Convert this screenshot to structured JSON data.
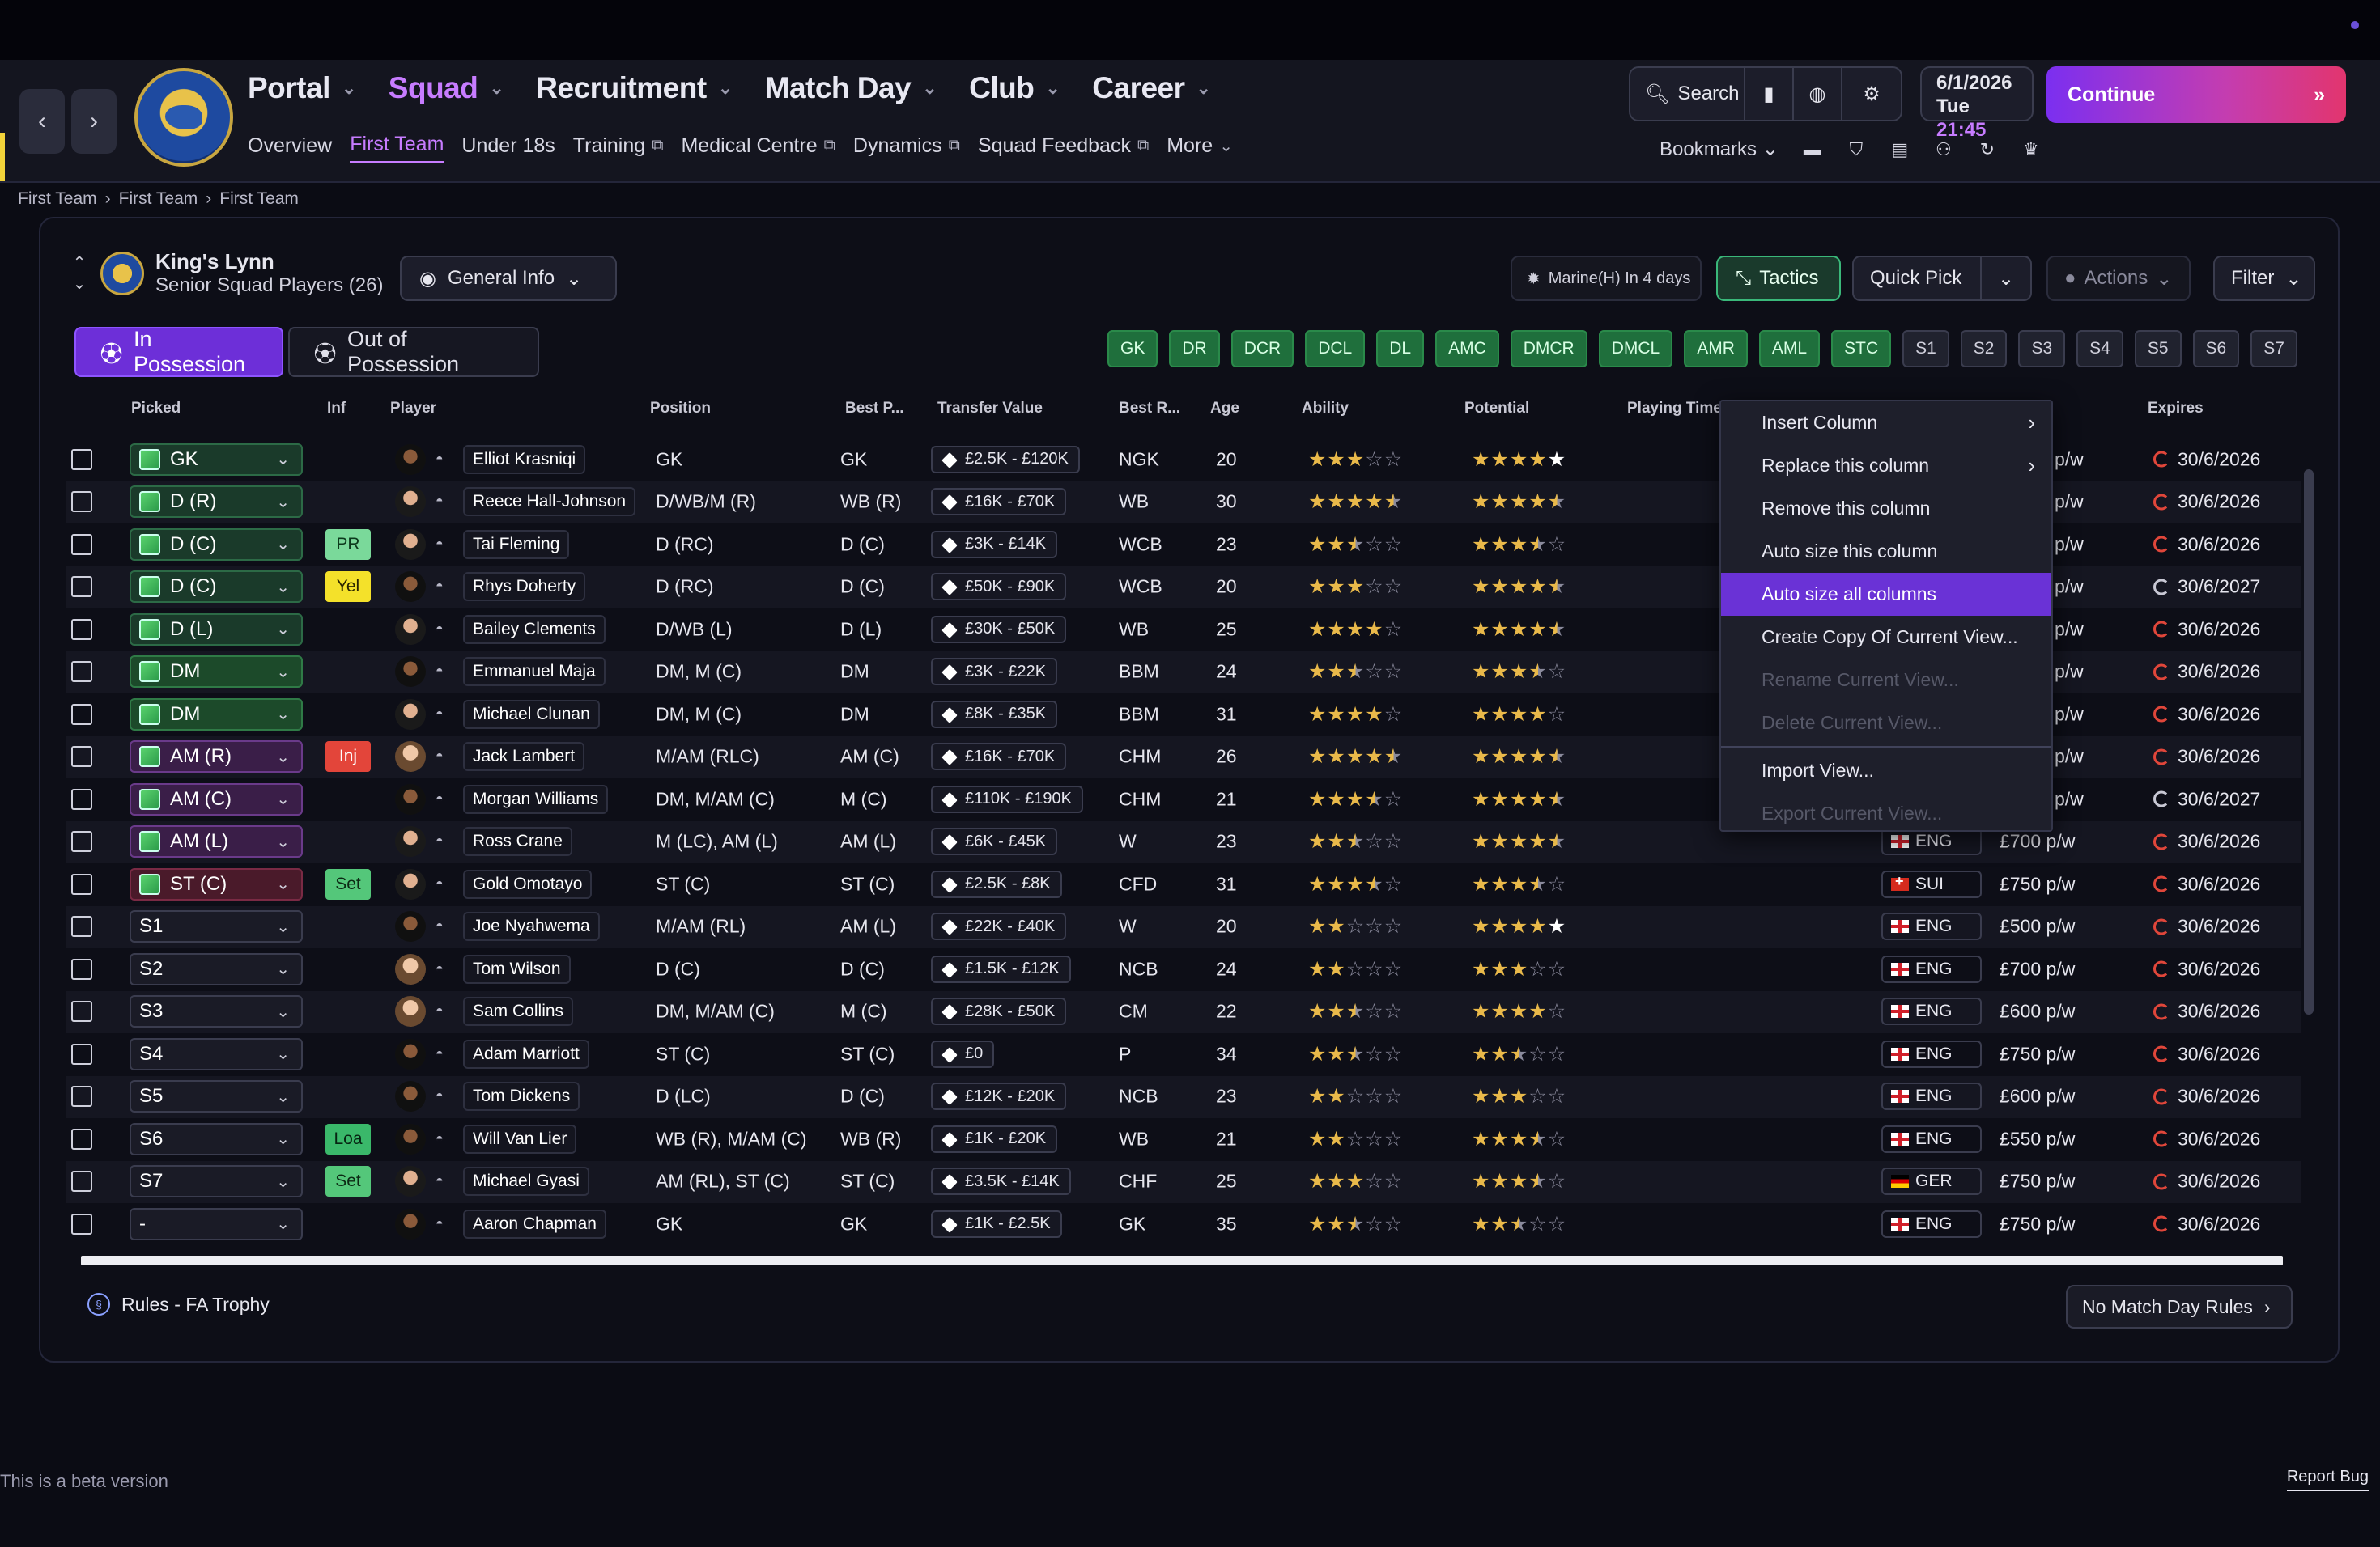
{
  "nav": {
    "main": [
      {
        "label": "Portal",
        "active": false
      },
      {
        "label": "Squad",
        "active": true
      },
      {
        "label": "Recruitment",
        "active": false
      },
      {
        "label": "Match Day",
        "active": false
      },
      {
        "label": "Club",
        "active": false
      },
      {
        "label": "Career",
        "active": false
      }
    ],
    "sub": [
      {
        "label": "Overview",
        "ext": false,
        "active": false
      },
      {
        "label": "First Team",
        "ext": false,
        "active": true
      },
      {
        "label": "Under 18s",
        "ext": false,
        "active": false
      },
      {
        "label": "Training",
        "ext": true,
        "active": false
      },
      {
        "label": "Medical Centre",
        "ext": true,
        "active": false
      },
      {
        "label": "Dynamics",
        "ext": true,
        "active": false
      },
      {
        "label": "Squad Feedback",
        "ext": true,
        "active": false
      },
      {
        "label": "More",
        "ext": false,
        "active": false
      }
    ]
  },
  "header": {
    "search_label": "Search",
    "date": "6/1/2026",
    "day": "Tue",
    "time": "21:45",
    "continue_label": "Continue",
    "bookmarks_label": "Bookmarks"
  },
  "breadcrumb": [
    "First Team",
    "First Team",
    "First Team"
  ],
  "club": {
    "name": "King's Lynn",
    "subtitle": "Senior Squad Players (26)"
  },
  "toolbar": {
    "view_label": "General Info",
    "opponent": "Marine(H) In 4 days",
    "tactics_label": "Tactics",
    "quickpick_label": "Quick Pick",
    "actions_label": "Actions",
    "filter_label": "Filter"
  },
  "possession": {
    "in_label": "In Possession",
    "out_label": "Out of Possession"
  },
  "position_chips": [
    {
      "label": "GK",
      "filled": true
    },
    {
      "label": "DR",
      "filled": true
    },
    {
      "label": "DCR",
      "filled": true
    },
    {
      "label": "DCL",
      "filled": true
    },
    {
      "label": "DL",
      "filled": true
    },
    {
      "label": "AMC",
      "filled": true
    },
    {
      "label": "DMCR",
      "filled": true
    },
    {
      "label": "DMCL",
      "filled": true
    },
    {
      "label": "AMR",
      "filled": true
    },
    {
      "label": "AML",
      "filled": true
    },
    {
      "label": "STC",
      "filled": true
    },
    {
      "label": "S1",
      "filled": false
    },
    {
      "label": "S2",
      "filled": false
    },
    {
      "label": "S3",
      "filled": false
    },
    {
      "label": "S4",
      "filled": false
    },
    {
      "label": "S5",
      "filled": false
    },
    {
      "label": "S6",
      "filled": false
    },
    {
      "label": "S7",
      "filled": false
    }
  ],
  "columns": {
    "picked": "Picked",
    "inf": "Inf",
    "player": "Player",
    "position": "Position",
    "best_pos": "Best P...",
    "transfer_value": "Transfer Value",
    "best_role": "Best R...",
    "age": "Age",
    "ability": "Ability",
    "potential": "Potential",
    "playing_time": "Playing Time",
    "expires": "Expires"
  },
  "players": [
    {
      "picked": "GK",
      "pick_type": "gk",
      "inf": "",
      "name": "Elliot Krasniqi",
      "face": "d",
      "position": "GK",
      "best_pos": "GK",
      "value": "£2.5K - £120K",
      "role": "NGK",
      "age": "20",
      "ability": 3,
      "potential": 5,
      "potential_white": true,
      "nation": "",
      "wage": "",
      "expires": "30/6/2026",
      "exp_red": true
    },
    {
      "picked": "D (R)",
      "pick_type": "df",
      "inf": "",
      "name": "Reece Hall-Johnson",
      "face": "",
      "position": "D/WB/M (R)",
      "best_pos": "WB (R)",
      "value": "£16K - £70K",
      "role": "WB",
      "age": "30",
      "ability": 4.5,
      "potential": 4.5,
      "nation": "",
      "wage": "",
      "expires": "30/6/2026",
      "exp_red": true
    },
    {
      "picked": "D (C)",
      "pick_type": "df",
      "inf": "PR",
      "name": "Tai Fleming",
      "face": "",
      "position": "D (RC)",
      "best_pos": "D (C)",
      "value": "£3K - £14K",
      "role": "WCB",
      "age": "23",
      "ability": 2.5,
      "potential": 3.5,
      "nation": "",
      "wage": "",
      "expires": "30/6/2026",
      "exp_red": true
    },
    {
      "picked": "D (C)",
      "pick_type": "df",
      "inf": "Yel",
      "name": "Rhys Doherty",
      "face": "d",
      "position": "D (RC)",
      "best_pos": "D (C)",
      "value": "£50K - £90K",
      "role": "WCB",
      "age": "20",
      "ability": 3,
      "potential": 4.5,
      "nation": "",
      "wage": "",
      "expires": "30/6/2027",
      "exp_red": false
    },
    {
      "picked": "D (L)",
      "pick_type": "df",
      "inf": "",
      "name": "Bailey Clements",
      "face": "",
      "position": "D/WB (L)",
      "best_pos": "D (L)",
      "value": "£30K - £50K",
      "role": "WB",
      "age": "25",
      "ability": 4,
      "potential": 4.5,
      "nation": "",
      "wage": "",
      "expires": "30/6/2026",
      "exp_red": true
    },
    {
      "picked": "DM",
      "pick_type": "dm",
      "inf": "",
      "name": "Emmanuel Maja",
      "face": "d",
      "position": "DM, M (C)",
      "best_pos": "DM",
      "value": "£3K - £22K",
      "role": "BBM",
      "age": "24",
      "ability": 2.5,
      "potential": 3.5,
      "nation": "",
      "wage": "",
      "expires": "30/6/2026",
      "exp_red": true
    },
    {
      "picked": "DM",
      "pick_type": "dm",
      "inf": "",
      "name": "Michael Clunan",
      "face": "",
      "position": "DM, M (C)",
      "best_pos": "DM",
      "value": "£8K - £35K",
      "role": "BBM",
      "age": "31",
      "ability": 4,
      "potential": 4,
      "nation": "",
      "wage": "",
      "expires": "30/6/2026",
      "exp_red": true
    },
    {
      "picked": "AM (R)",
      "pick_type": "am",
      "inf": "Inj",
      "name": "Jack Lambert",
      "face": "l",
      "position": "M/AM (RLC)",
      "best_pos": "AM (C)",
      "value": "£16K - £70K",
      "role": "CHM",
      "age": "26",
      "ability": 4.5,
      "potential": 4.5,
      "nation": "",
      "wage": "",
      "expires": "30/6/2026",
      "exp_red": true
    },
    {
      "picked": "AM (C)",
      "pick_type": "am",
      "inf": "",
      "name": "Morgan Williams",
      "face": "d",
      "position": "DM, M/AM (C)",
      "best_pos": "M (C)",
      "value": "£110K - £190K",
      "role": "CHM",
      "age": "21",
      "ability": 3.5,
      "potential": 4.5,
      "nation": "",
      "wage": "",
      "expires": "30/6/2027",
      "exp_red": false
    },
    {
      "picked": "AM (L)",
      "pick_type": "am",
      "inf": "",
      "name": "Ross Crane",
      "face": "",
      "position": "M (LC), AM (L)",
      "best_pos": "AM (L)",
      "value": "£6K - £45K",
      "role": "W",
      "age": "23",
      "ability": 2.5,
      "potential": 4.5,
      "nation": "ENG",
      "wage": "£700 p/w",
      "expires": "30/6/2026",
      "exp_red": true
    },
    {
      "picked": "ST (C)",
      "pick_type": "st",
      "inf": "Set",
      "name": "Gold Omotayo",
      "face": "",
      "position": "ST (C)",
      "best_pos": "ST (C)",
      "value": "£2.5K - £8K",
      "role": "CFD",
      "age": "31",
      "ability": 3.5,
      "potential": 3.5,
      "nation": "SUI",
      "wage": "£750 p/w",
      "expires": "30/6/2026",
      "exp_red": true
    },
    {
      "picked": "S1",
      "pick_type": "",
      "inf": "",
      "name": "Joe Nyahwema",
      "face": "d",
      "position": "M/AM (RL)",
      "best_pos": "AM (L)",
      "value": "£22K - £40K",
      "role": "W",
      "age": "20",
      "ability": 2,
      "potential": 5,
      "potential_white": true,
      "nation": "ENG",
      "wage": "£500 p/w",
      "expires": "30/6/2026",
      "exp_red": true
    },
    {
      "picked": "S2",
      "pick_type": "",
      "inf": "",
      "name": "Tom Wilson",
      "face": "l",
      "position": "D (C)",
      "best_pos": "D (C)",
      "value": "£1.5K - £12K",
      "role": "NCB",
      "age": "24",
      "ability": 2,
      "potential": 3,
      "nation": "ENG",
      "wage": "£700 p/w",
      "expires": "30/6/2026",
      "exp_red": true
    },
    {
      "picked": "S3",
      "pick_type": "",
      "inf": "",
      "name": "Sam Collins",
      "face": "l",
      "position": "DM, M/AM (C)",
      "best_pos": "M (C)",
      "value": "£28K - £50K",
      "role": "CM",
      "age": "22",
      "ability": 2.5,
      "potential": 4,
      "nation": "ENG",
      "wage": "£600 p/w",
      "expires": "30/6/2026",
      "exp_red": true
    },
    {
      "picked": "S4",
      "pick_type": "",
      "inf": "",
      "name": "Adam Marriott",
      "face": "d",
      "position": "ST (C)",
      "best_pos": "ST (C)",
      "value": "£0",
      "role": "P",
      "age": "34",
      "ability": 2.5,
      "potential": 2.5,
      "nation": "ENG",
      "wage": "£750 p/w",
      "expires": "30/6/2026",
      "exp_red": true
    },
    {
      "picked": "S5",
      "pick_type": "",
      "inf": "",
      "name": "Tom Dickens",
      "face": "d",
      "position": "D (LC)",
      "best_pos": "D (C)",
      "value": "£12K - £20K",
      "role": "NCB",
      "age": "23",
      "ability": 2,
      "potential": 3,
      "nation": "ENG",
      "wage": "£600 p/w",
      "expires": "30/6/2026",
      "exp_red": true
    },
    {
      "picked": "S6",
      "pick_type": "",
      "inf": "Loa",
      "name": "Will Van Lier",
      "face": "d",
      "position": "WB (R), M/AM (C)",
      "best_pos": "WB (R)",
      "value": "£1K - £20K",
      "role": "WB",
      "age": "21",
      "ability": 2,
      "potential": 3.5,
      "nation": "ENG",
      "wage": "£550 p/w",
      "expires": "30/6/2026",
      "exp_red": true
    },
    {
      "picked": "S7",
      "pick_type": "",
      "inf": "Set",
      "name": "Michael Gyasi",
      "face": "",
      "position": "AM (RL), ST (C)",
      "best_pos": "ST (C)",
      "value": "£3.5K - £14K",
      "role": "CHF",
      "age": "25",
      "ability": 3,
      "potential": 3.5,
      "nation": "GER",
      "wage": "£750 p/w",
      "expires": "30/6/2026",
      "exp_red": true
    },
    {
      "picked": "-",
      "pick_type": "",
      "inf": "",
      "name": "Aaron Chapman",
      "face": "d",
      "position": "GK",
      "best_pos": "GK",
      "value": "£1K - £2.5K",
      "role": "GK",
      "age": "35",
      "ability": 2.5,
      "potential": 2.5,
      "nation": "ENG",
      "wage": "£750 p/w",
      "expires": "30/6/2026",
      "exp_red": true
    }
  ],
  "context_menu": [
    {
      "label": "Insert Column",
      "state": "normal",
      "submenu": true
    },
    {
      "label": "Replace this column",
      "state": "normal",
      "submenu": true
    },
    {
      "label": "Remove this column",
      "state": "normal",
      "submenu": false
    },
    {
      "label": "Auto size this column",
      "state": "normal",
      "submenu": false
    },
    {
      "label": "Auto size all columns",
      "state": "highlight",
      "submenu": false
    },
    {
      "label": "Create Copy Of Current View...",
      "state": "normal",
      "submenu": false
    },
    {
      "label": "Rename Current View...",
      "state": "disabled",
      "submenu": false
    },
    {
      "label": "Delete Current View...",
      "state": "disabled",
      "submenu": false
    },
    {
      "label": "Import View...",
      "state": "normal",
      "submenu": false,
      "sep_before": true
    },
    {
      "label": "Export Current View...",
      "state": "disabled",
      "submenu": false
    }
  ],
  "footer": {
    "rules_label": "Rules - FA Trophy",
    "no_match_rules": "No Match Day Rules",
    "beta_text": "This is a beta version",
    "report_bug": "Report Bug"
  },
  "colors": {
    "accent": "#c77cff",
    "continue_start": "#7b2ff0",
    "continue_end": "#e2356e",
    "chip_green": "#1f6f3c",
    "menu_highlight": "#6a32d6"
  }
}
